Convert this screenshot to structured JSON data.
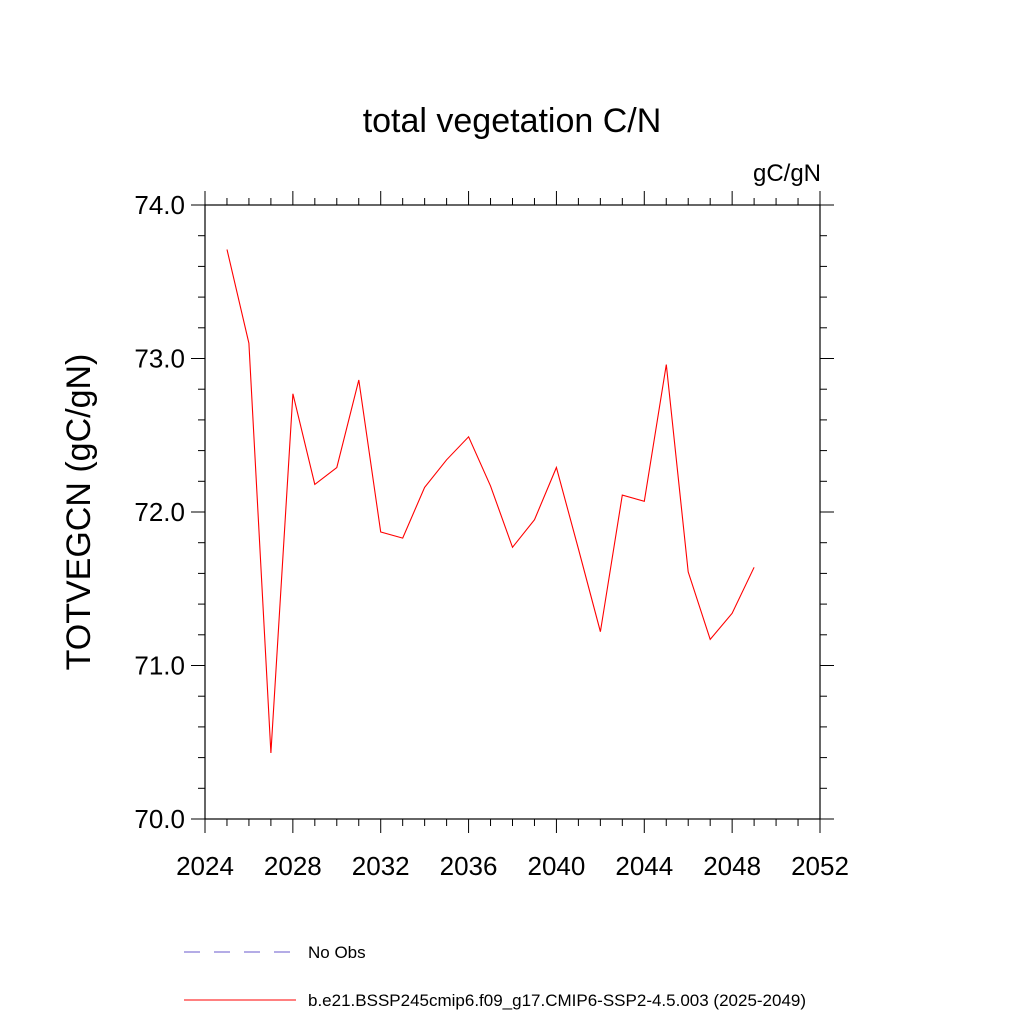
{
  "chart_data": {
    "type": "line",
    "title": "total vegetation C/N",
    "units": "gC/gN",
    "xlabel": "",
    "ylabel": "TOTVEGCN  (gC/gN)",
    "xlim": [
      2024,
      2052
    ],
    "ylim": [
      70.0,
      74.0
    ],
    "x_ticks": [
      2024,
      2028,
      2032,
      2036,
      2040,
      2044,
      2048,
      2052
    ],
    "x_tick_labels": [
      "2024",
      "2028",
      "2032",
      "2036",
      "2040",
      "2044",
      "2048",
      "2052"
    ],
    "y_ticks": [
      70.0,
      71.0,
      72.0,
      73.0,
      74.0
    ],
    "y_tick_labels": [
      "70.0",
      "71.0",
      "72.0",
      "73.0",
      "74.0"
    ],
    "grid": false,
    "legend_position": "bottom",
    "series": [
      {
        "name": "No Obs",
        "color": "#6a5acd",
        "style": "dashed",
        "x": [],
        "y": []
      },
      {
        "name": "b.e21.BSSP245cmip6.f09_g17.CMIP6-SSP2-4.5.003 (2025-2049)",
        "color": "#ff0000",
        "style": "solid",
        "x": [
          2025,
          2026,
          2027,
          2028,
          2029,
          2030,
          2031,
          2032,
          2033,
          2034,
          2035,
          2036,
          2037,
          2038,
          2039,
          2040,
          2041,
          2042,
          2043,
          2044,
          2045,
          2046,
          2047,
          2048,
          2049
        ],
        "y": [
          73.71,
          73.1,
          70.43,
          72.77,
          72.18,
          72.29,
          72.86,
          71.87,
          71.83,
          72.16,
          72.34,
          72.49,
          72.17,
          71.77,
          71.95,
          72.29,
          71.76,
          71.22,
          72.11,
          72.07,
          72.96,
          71.61,
          71.17,
          71.34,
          71.64
        ]
      }
    ]
  }
}
